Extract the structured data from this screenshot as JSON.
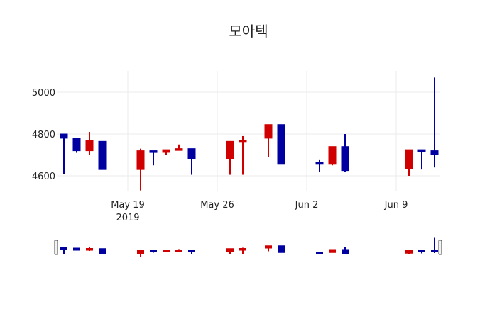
{
  "chart_data": {
    "type": "candlestick",
    "title": "모아텍",
    "xlabel": "",
    "ylabel": "",
    "ylim": [
      4510,
      5090
    ],
    "yticks": [
      4600,
      4800,
      5000
    ],
    "xticks": [
      {
        "date": "2019-05-19",
        "label": "May 19",
        "sublabel": "2019"
      },
      {
        "date": "2019-05-26",
        "label": "May 26",
        "sublabel": ""
      },
      {
        "date": "2019-06-02",
        "label": "Jun 2",
        "sublabel": ""
      },
      {
        "date": "2019-06-09",
        "label": "Jun 9",
        "sublabel": ""
      }
    ],
    "xrange": [
      "2019-05-13.5",
      "2019-06-12.5"
    ],
    "grid": true,
    "increasing_color": "#d10000",
    "decreasing_color": "#0000a0",
    "rangeslider": true,
    "candles": [
      {
        "date": "2019-05-14",
        "open": 4800,
        "high": 4800,
        "low": 4610,
        "close": 4780
      },
      {
        "date": "2019-05-15",
        "open": 4780,
        "high": 4780,
        "low": 4710,
        "close": 4720
      },
      {
        "date": "2019-05-16",
        "open": 4720,
        "high": 4810,
        "low": 4700,
        "close": 4770
      },
      {
        "date": "2019-05-17",
        "open": 4765,
        "high": 4765,
        "low": 4630,
        "close": 4630
      },
      {
        "date": "2019-05-20",
        "open": 4630,
        "high": 4730,
        "low": 4530,
        "close": 4720
      },
      {
        "date": "2019-05-21",
        "open": 4720,
        "high": 4720,
        "low": 4650,
        "close": 4715
      },
      {
        "date": "2019-05-22",
        "open": 4712,
        "high": 4725,
        "low": 4700,
        "close": 4725
      },
      {
        "date": "2019-05-23",
        "open": 4722,
        "high": 4750,
        "low": 4722,
        "close": 4730
      },
      {
        "date": "2019-05-24",
        "open": 4730,
        "high": 4730,
        "low": 4605,
        "close": 4680
      },
      {
        "date": "2019-05-27",
        "open": 4680,
        "high": 4765,
        "low": 4605,
        "close": 4765
      },
      {
        "date": "2019-05-28",
        "open": 4760,
        "high": 4790,
        "low": 4605,
        "close": 4770
      },
      {
        "date": "2019-05-30",
        "open": 4780,
        "high": 4845,
        "low": 4690,
        "close": 4845
      },
      {
        "date": "2019-05-31",
        "open": 4845,
        "high": 4845,
        "low": 4655,
        "close": 4655
      },
      {
        "date": "2019-06-03",
        "open": 4665,
        "high": 4675,
        "low": 4620,
        "close": 4655
      },
      {
        "date": "2019-06-04",
        "open": 4655,
        "high": 4740,
        "low": 4650,
        "close": 4740
      },
      {
        "date": "2019-06-05",
        "open": 4740,
        "high": 4800,
        "low": 4620,
        "close": 4625
      },
      {
        "date": "2019-06-10",
        "open": 4635,
        "high": 4725,
        "low": 4600,
        "close": 4725
      },
      {
        "date": "2019-06-11",
        "open": 4725,
        "high": 4725,
        "low": 4630,
        "close": 4720
      },
      {
        "date": "2019-06-12",
        "open": 4720,
        "high": 5070,
        "low": 4640,
        "close": 4700
      }
    ]
  }
}
